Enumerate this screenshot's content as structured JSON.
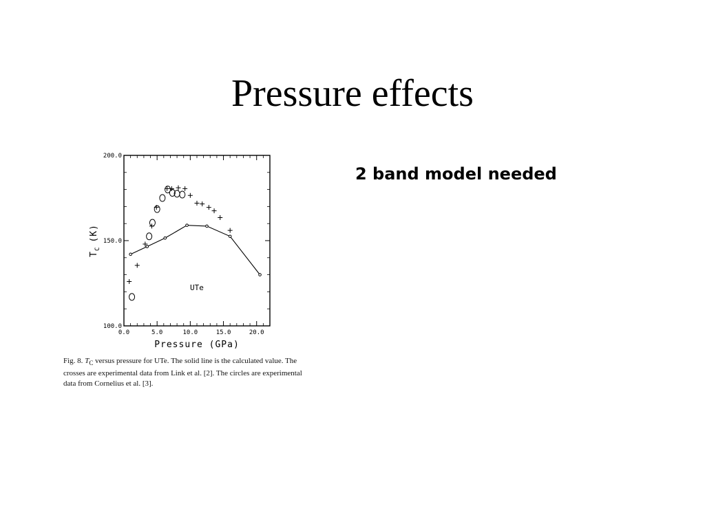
{
  "slide": {
    "title": "Pressure effects",
    "note": "2 band model needed"
  },
  "caption": {
    "prefix": "Fig. 8. ",
    "symbol": "T",
    "subscript": "C",
    "text": " versus pressure for UTe. The solid line is the calculated value. The crosses are experimental data from Link et al. [2]. The circles are experimental data from Cornelius et al. [3]."
  },
  "chart_data": {
    "type": "scatter",
    "xlabel": "Pressure (GPa)",
    "ylabel_main": "T",
    "ylabel_sub": "C",
    "ylabel_unit": "(K)",
    "annotation": "UTe",
    "xlim": [
      0,
      22
    ],
    "ylim": [
      100,
      200
    ],
    "x_ticks": [
      {
        "value": 0,
        "label": "0.0"
      },
      {
        "value": 5,
        "label": "5.0"
      },
      {
        "value": 10,
        "label": "10.0"
      },
      {
        "value": 15,
        "label": "15.0"
      },
      {
        "value": 20,
        "label": "20.0"
      }
    ],
    "y_ticks": [
      {
        "value": 100,
        "label": "100.0"
      },
      {
        "value": 150,
        "label": "150.0"
      },
      {
        "value": 200,
        "label": "200.0"
      }
    ],
    "grid": false,
    "series": [
      {
        "marker": "line-dot",
        "points": [
          [
            1.0,
            142
          ],
          [
            3.5,
            146.5
          ],
          [
            6.2,
            151.5
          ],
          [
            9.5,
            159
          ],
          [
            12.5,
            158.5
          ],
          [
            16.0,
            152.5
          ],
          [
            20.5,
            130
          ]
        ]
      },
      {
        "marker": "cross",
        "points": [
          [
            0.8,
            126
          ],
          [
            2.0,
            135.5
          ],
          [
            3.2,
            148
          ],
          [
            4.2,
            158.5
          ],
          [
            4.9,
            169.5
          ],
          [
            6.5,
            180.5
          ],
          [
            7.2,
            180.5
          ],
          [
            8.2,
            181
          ],
          [
            9.2,
            180.5
          ],
          [
            10.0,
            176.5
          ],
          [
            11.0,
            172
          ],
          [
            11.8,
            171.5
          ],
          [
            12.8,
            169.5
          ],
          [
            13.6,
            167.5
          ],
          [
            14.5,
            163.5
          ],
          [
            16.0,
            156
          ]
        ]
      },
      {
        "marker": "circle",
        "points": [
          [
            1.2,
            117
          ],
          [
            3.8,
            152.5
          ],
          [
            4.3,
            160.5
          ],
          [
            5.0,
            168.5
          ],
          [
            5.8,
            175
          ],
          [
            6.6,
            180
          ],
          [
            7.3,
            178
          ],
          [
            8.0,
            177.5
          ],
          [
            8.8,
            177
          ]
        ]
      }
    ]
  }
}
